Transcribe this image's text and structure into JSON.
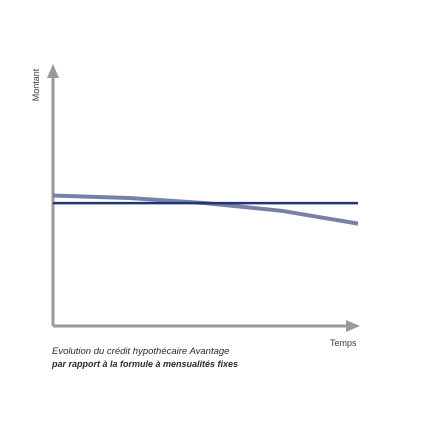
{
  "chart_data": {
    "type": "line",
    "title": "",
    "ylabel": "Montant",
    "xlabel": "Temps",
    "caption_line1": "Evolution du crédit hypothécaire Avantage",
    "caption_line2": "par rapport à la formule à mensualités fixes",
    "x": [
      0,
      0.25,
      0.5,
      0.75,
      1
    ],
    "xlim": [
      0,
      1
    ],
    "ylim": [
      0,
      1
    ],
    "grid": false,
    "series": [
      {
        "values": [
          0.51,
          0.5,
          0.48,
          0.45,
          0.4
        ],
        "color": "#7a7fa8"
      },
      {
        "values": [
          0.48,
          0.48,
          0.48,
          0.48,
          0.48
        ],
        "color": "#1e3578"
      }
    ],
    "axis_color": "#9a9a9a"
  }
}
